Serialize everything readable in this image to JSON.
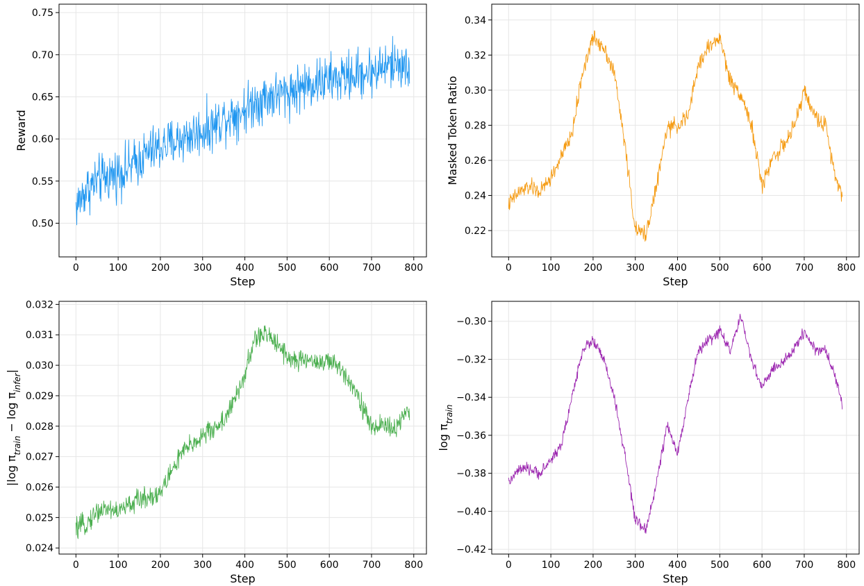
{
  "chart_data": [
    {
      "type": "line",
      "xlabel": "Step",
      "ylabel": "Reward",
      "xlim": [
        -40,
        830
      ],
      "ylim": [
        0.46,
        0.76
      ],
      "xticks": [
        0,
        100,
        200,
        300,
        400,
        500,
        600,
        700,
        800
      ],
      "yticks": [
        0.5,
        0.55,
        0.6,
        0.65,
        0.7,
        0.75
      ],
      "ytick_labels": [
        "0.50",
        "0.55",
        "0.60",
        "0.65",
        "0.70",
        "0.75"
      ],
      "grid": true,
      "color": "#1f96f0",
      "series": [
        {
          "x": [
            0,
            25,
            50,
            75,
            100,
            125,
            150,
            175,
            200,
            225,
            250,
            275,
            300,
            325,
            350,
            375,
            400,
            425,
            450,
            475,
            500,
            525,
            550,
            575,
            600,
            625,
            650,
            675,
            700,
            725,
            750,
            775,
            790
          ],
          "values": [
            0.52,
            0.54,
            0.55,
            0.555,
            0.56,
            0.565,
            0.575,
            0.585,
            0.59,
            0.595,
            0.6,
            0.605,
            0.61,
            0.615,
            0.625,
            0.63,
            0.635,
            0.645,
            0.65,
            0.652,
            0.655,
            0.66,
            0.665,
            0.668,
            0.67,
            0.672,
            0.675,
            0.678,
            0.68,
            0.685,
            0.688,
            0.69,
            0.675
          ],
          "noise": 0.025
        }
      ]
    },
    {
      "type": "line",
      "xlabel": "Step",
      "ylabel": "Masked Token Ratio",
      "xlim": [
        -40,
        830
      ],
      "ylim": [
        0.205,
        0.349
      ],
      "xticks": [
        0,
        100,
        200,
        300,
        400,
        500,
        600,
        700,
        800
      ],
      "yticks": [
        0.22,
        0.24,
        0.26,
        0.28,
        0.3,
        0.32,
        0.34
      ],
      "ytick_labels": [
        "0.22",
        "0.24",
        "0.26",
        "0.28",
        "0.30",
        "0.32",
        "0.34"
      ],
      "grid": true,
      "color": "#f59a10",
      "series": [
        {
          "x": [
            0,
            25,
            50,
            75,
            100,
            125,
            150,
            175,
            200,
            225,
            250,
            275,
            300,
            325,
            350,
            375,
            400,
            425,
            450,
            475,
            500,
            525,
            550,
            575,
            600,
            625,
            650,
            675,
            700,
            725,
            750,
            775,
            790
          ],
          "values": [
            0.235,
            0.242,
            0.245,
            0.242,
            0.25,
            0.262,
            0.275,
            0.31,
            0.33,
            0.325,
            0.31,
            0.27,
            0.22,
            0.218,
            0.245,
            0.278,
            0.28,
            0.285,
            0.315,
            0.325,
            0.33,
            0.305,
            0.298,
            0.28,
            0.245,
            0.262,
            0.268,
            0.278,
            0.3,
            0.285,
            0.28,
            0.25,
            0.242
          ],
          "noise": 0.004
        }
      ]
    },
    {
      "type": "line",
      "xlabel": "Step",
      "ylabel": "|log π_train − log π_infer|",
      "ylabel_parts": {
        "open": "|log π",
        "sub1": "train",
        "mid": " − log π",
        "sub2": "infer",
        "close": "|"
      },
      "xlim": [
        -40,
        830
      ],
      "ylim": [
        0.0238,
        0.0321
      ],
      "xticks": [
        0,
        100,
        200,
        300,
        400,
        500,
        600,
        700,
        800
      ],
      "yticks": [
        0.024,
        0.025,
        0.026,
        0.027,
        0.028,
        0.029,
        0.03,
        0.031,
        0.032
      ],
      "ytick_labels": [
        "0.024",
        "0.025",
        "0.026",
        "0.027",
        "0.028",
        "0.029",
        "0.030",
        "0.031",
        "0.032"
      ],
      "grid": true,
      "color": "#4caf50",
      "series": [
        {
          "x": [
            0,
            25,
            50,
            75,
            100,
            125,
            150,
            175,
            200,
            225,
            250,
            275,
            300,
            325,
            350,
            375,
            400,
            425,
            450,
            475,
            500,
            525,
            550,
            575,
            600,
            625,
            650,
            675,
            700,
            725,
            750,
            775,
            790
          ],
          "values": [
            0.0246,
            0.0248,
            0.0252,
            0.0253,
            0.0252,
            0.0254,
            0.0256,
            0.0257,
            0.0258,
            0.0265,
            0.0271,
            0.0274,
            0.0277,
            0.0279,
            0.0282,
            0.0288,
            0.0297,
            0.0309,
            0.031,
            0.0308,
            0.0303,
            0.0301,
            0.0302,
            0.0301,
            0.0301,
            0.0299,
            0.0295,
            0.0288,
            0.0279,
            0.0281,
            0.0279,
            0.0282,
            0.0285
          ],
          "noise": 0.0003
        }
      ]
    },
    {
      "type": "line",
      "xlabel": "Step",
      "ylabel": "log π_train",
      "ylabel_parts": {
        "open": "log π",
        "sub1": "train"
      },
      "xlim": [
        -40,
        830
      ],
      "ylim": [
        -0.4225,
        -0.2895
      ],
      "xticks": [
        0,
        100,
        200,
        300,
        400,
        500,
        600,
        700,
        800
      ],
      "yticks": [
        -0.42,
        -0.4,
        -0.38,
        -0.36,
        -0.34,
        -0.32,
        -0.3
      ],
      "ytick_labels": [
        "−0.42",
        "−0.40",
        "−0.38",
        "−0.36",
        "−0.34",
        "−0.32",
        "−0.30"
      ],
      "grid": true,
      "color": "#9c27b0",
      "series": [
        {
          "x": [
            0,
            25,
            50,
            75,
            100,
            125,
            150,
            175,
            200,
            225,
            250,
            275,
            300,
            325,
            350,
            375,
            400,
            425,
            450,
            475,
            500,
            525,
            550,
            575,
            600,
            625,
            650,
            675,
            700,
            725,
            750,
            775,
            790
          ],
          "values": [
            -0.385,
            -0.378,
            -0.378,
            -0.38,
            -0.373,
            -0.365,
            -0.34,
            -0.315,
            -0.31,
            -0.32,
            -0.34,
            -0.37,
            -0.405,
            -0.41,
            -0.385,
            -0.355,
            -0.37,
            -0.34,
            -0.315,
            -0.31,
            -0.305,
            -0.315,
            -0.298,
            -0.32,
            -0.335,
            -0.325,
            -0.322,
            -0.315,
            -0.305,
            -0.315,
            -0.315,
            -0.33,
            -0.343
          ],
          "noise": 0.0025
        }
      ]
    }
  ]
}
